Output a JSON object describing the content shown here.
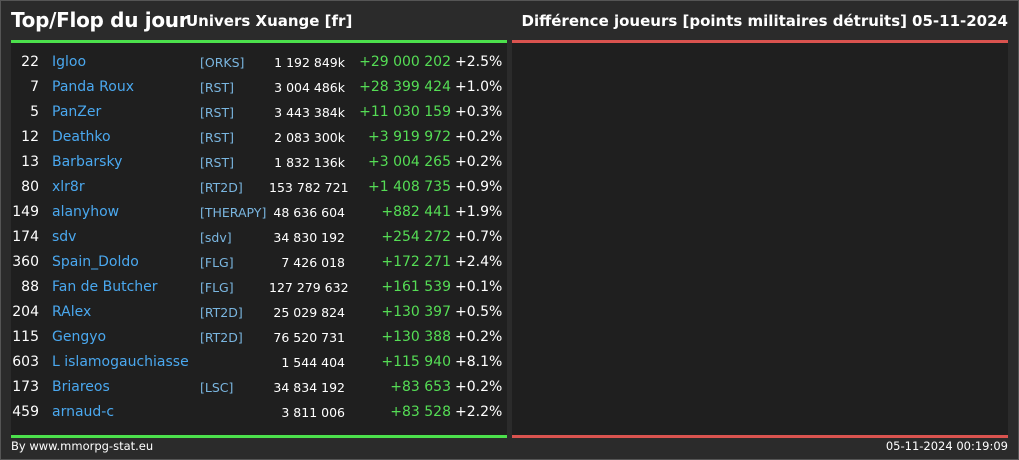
{
  "header": {
    "title": "Top/Flop du jour",
    "universe": "Univers Xuange [fr]",
    "metric": "Différence joueurs [points militaires détruits]",
    "date": "05-11-2024"
  },
  "colors": {
    "top_accent": "#4ce04c",
    "flop_accent": "#d9534f",
    "player_name": "#4aa8ef",
    "gain": "#55dd55"
  },
  "top": [
    {
      "rank": "22",
      "name": "Igloo",
      "alliance": "[ORKS]",
      "points": "1 192 849k",
      "diff": "+29 000 202",
      "pct": "+2.5%"
    },
    {
      "rank": "7",
      "name": "Panda Roux",
      "alliance": "[RST]",
      "points": "3 004 486k",
      "diff": "+28 399 424",
      "pct": "+1.0%"
    },
    {
      "rank": "5",
      "name": "PanZer",
      "alliance": "[RST]",
      "points": "3 443 384k",
      "diff": "+11 030 159",
      "pct": "+0.3%"
    },
    {
      "rank": "12",
      "name": "Deathko",
      "alliance": "[RST]",
      "points": "2 083 300k",
      "diff": "+3 919 972",
      "pct": "+0.2%"
    },
    {
      "rank": "13",
      "name": "Barbarsky",
      "alliance": "[RST]",
      "points": "1 832 136k",
      "diff": "+3 004 265",
      "pct": "+0.2%"
    },
    {
      "rank": "80",
      "name": "xlr8r",
      "alliance": "[RT2D]",
      "points": "153 782 721",
      "diff": "+1 408 735",
      "pct": "+0.9%"
    },
    {
      "rank": "149",
      "name": "alanyhow",
      "alliance": "[THERAPY]",
      "points": "48 636 604",
      "diff": "+882 441",
      "pct": "+1.9%"
    },
    {
      "rank": "174",
      "name": "sdv",
      "alliance": "[sdv]",
      "points": "34 830 192",
      "diff": "+254 272",
      "pct": "+0.7%"
    },
    {
      "rank": "360",
      "name": "Spain_Doldo",
      "alliance": "[FLG]",
      "points": "7 426 018",
      "diff": "+172 271",
      "pct": "+2.4%"
    },
    {
      "rank": "88",
      "name": "Fan de Butcher",
      "alliance": "[FLG]",
      "points": "127 279 632",
      "diff": "+161 539",
      "pct": "+0.1%"
    },
    {
      "rank": "204",
      "name": "RAlex",
      "alliance": "[RT2D]",
      "points": "25 029 824",
      "diff": "+130 397",
      "pct": "+0.5%"
    },
    {
      "rank": "115",
      "name": "Gengyo",
      "alliance": "[RT2D]",
      "points": "76 520 731",
      "diff": "+130 388",
      "pct": "+0.2%"
    },
    {
      "rank": "603",
      "name": "L islamogauchiasse",
      "alliance": "",
      "points": "1 544 404",
      "diff": "+115 940",
      "pct": "+8.1%"
    },
    {
      "rank": "173",
      "name": "Briareos",
      "alliance": "[LSC]",
      "points": "34 834 192",
      "diff": "+83 653",
      "pct": "+0.2%"
    },
    {
      "rank": "459",
      "name": "arnaud-c",
      "alliance": "",
      "points": "3 811 006",
      "diff": "+83 528",
      "pct": "+2.2%"
    }
  ],
  "footer": {
    "source": "By www.mmorpg-stat.eu",
    "generated": "05-11-2024 00:19:09"
  }
}
